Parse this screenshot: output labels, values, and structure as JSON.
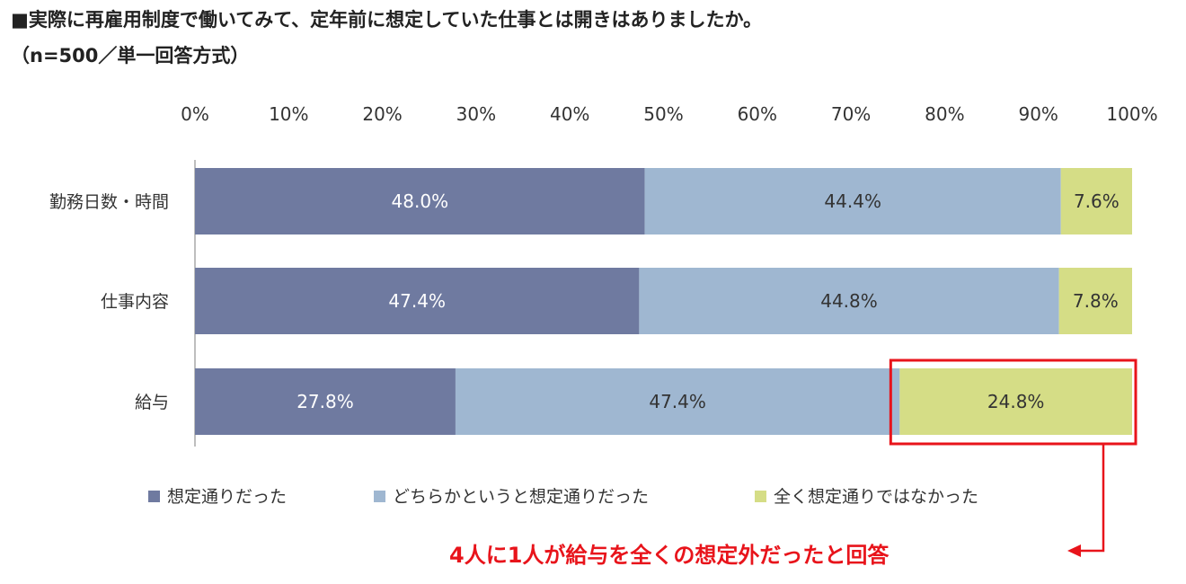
{
  "title": "■実際に再雇用制度で働いてみて、定年前に想定していた仕事とは開きはありましたか。",
  "subtitle": "（n=500／単一回答方式）",
  "chart_data": {
    "type": "bar",
    "orientation": "horizontal",
    "stacked": true,
    "categories": [
      "勤務日数・時間",
      "仕事内容",
      "給与"
    ],
    "series": [
      {
        "name": "想定通りだった",
        "values": [
          48.0,
          47.4,
          27.8
        ],
        "labels": [
          "48.0%",
          "47.4%",
          "27.8%"
        ],
        "color": "#6f7aa0",
        "label_color": "#ffffff"
      },
      {
        "name": "どちらかというと想定通りだった",
        "values": [
          44.4,
          44.8,
          47.4
        ],
        "labels": [
          "44.4%",
          "44.8%",
          "47.4%"
        ],
        "color": "#9fb7d1",
        "label_color": "#333333"
      },
      {
        "name": "全く想定通りではなかった",
        "values": [
          7.6,
          7.8,
          24.8
        ],
        "labels": [
          "7.6%",
          "7.8%",
          "24.8%"
        ],
        "color": "#d5dd86",
        "label_color": "#333333"
      }
    ],
    "x_ticks": [
      "0%",
      "10%",
      "20%",
      "30%",
      "40%",
      "50%",
      "60%",
      "70%",
      "80%",
      "90%",
      "100%"
    ],
    "xlim": [
      0,
      100
    ],
    "axis_position": "top",
    "legend_position": "bottom",
    "highlight": {
      "category_index": 2,
      "series_index": 2,
      "color": "#e8141b"
    }
  },
  "callout": {
    "text": "4人に1人が給与を全くの想定外だったと回答",
    "color": "#e8141b"
  }
}
